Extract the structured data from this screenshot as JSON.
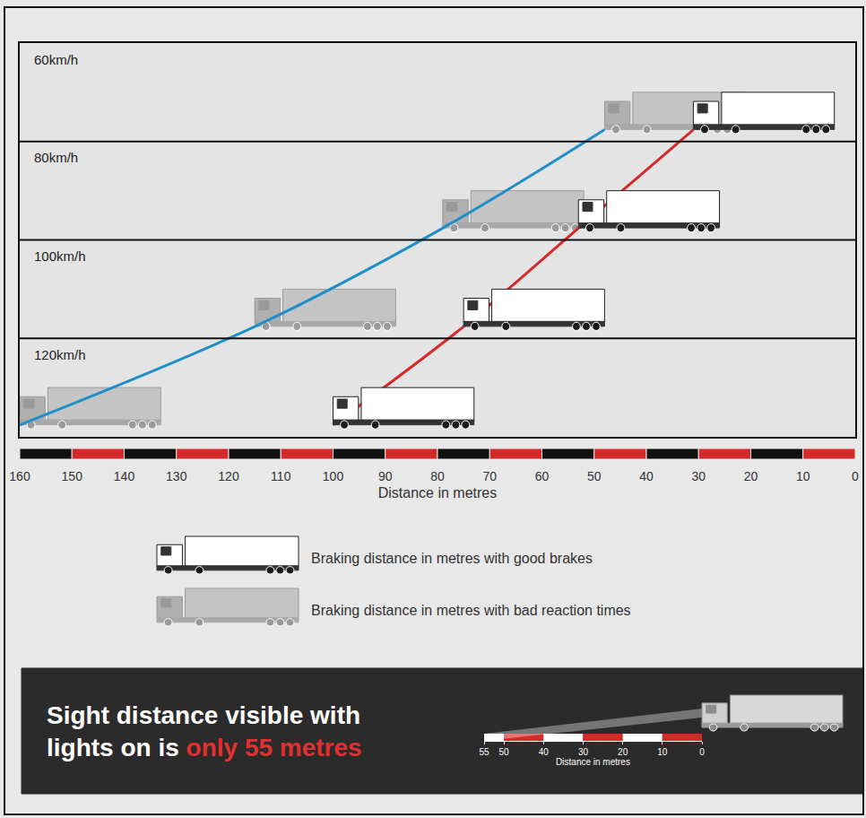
{
  "chart_data": {
    "type": "line",
    "orientation": "horizontal",
    "categories": [
      "120km/h",
      "100km/h",
      "80km/h",
      "60km/h"
    ],
    "series": [
      {
        "name": "Braking distance in metres with good brakes",
        "color": "#d42a2a",
        "values": [
          100,
          75,
          53,
          31
        ]
      },
      {
        "name": "Braking distance in metres with bad reaction times",
        "color": "#1f8fc7",
        "values": [
          160,
          115,
          79,
          48
        ]
      }
    ],
    "xlim": [
      160,
      0
    ],
    "xticks": [
      160,
      150,
      140,
      130,
      120,
      110,
      100,
      90,
      80,
      70,
      60,
      50,
      40,
      30,
      20,
      10,
      0
    ],
    "x_label": "Distance in metres",
    "tick_labels": "x",
    "grid": false,
    "legend": "bottom",
    "sight_panel": {
      "text_lines": [
        "Sight distance visible with",
        "lights on is"
      ],
      "highlight": "only 55 metres",
      "distance": 55,
      "xlim": [
        55,
        0
      ],
      "xticks": [
        55,
        50,
        40,
        30,
        20,
        10,
        0
      ],
      "x_label": "Distance in metres"
    }
  }
}
